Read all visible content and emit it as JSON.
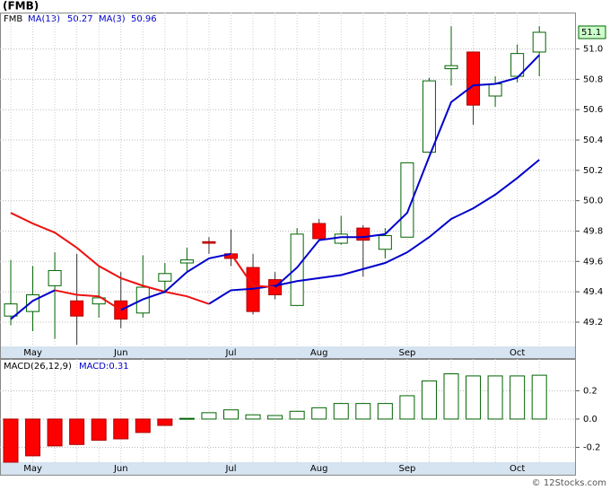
{
  "chart_data": [
    {
      "type": "candlestick",
      "title": "(FMB)",
      "symbol": "FMB",
      "categories": [
        null,
        "May",
        null,
        null,
        null,
        "Jun",
        null,
        null,
        null,
        null,
        "Jul",
        null,
        null,
        null,
        "Aug",
        null,
        null,
        null,
        "Sep",
        null,
        null,
        null,
        null,
        "Oct",
        null
      ],
      "open": [
        49.24,
        49.27,
        49.44,
        49.34,
        49.32,
        49.34,
        49.26,
        49.47,
        49.59,
        49.73,
        49.65,
        49.56,
        49.48,
        49.31,
        49.85,
        49.72,
        49.82,
        49.68,
        49.76,
        50.32,
        50.87,
        50.98,
        50.69,
        50.82,
        50.98
      ],
      "high": [
        49.61,
        49.57,
        49.66,
        49.65,
        49.57,
        49.53,
        49.64,
        49.59,
        49.69,
        49.76,
        49.81,
        49.65,
        49.53,
        49.82,
        49.88,
        49.9,
        49.84,
        49.82,
        50.25,
        50.81,
        51.15,
        50.98,
        50.82,
        51.03,
        51.15
      ],
      "low": [
        49.18,
        49.14,
        49.09,
        49.05,
        49.23,
        49.16,
        49.23,
        49.39,
        49.53,
        49.65,
        49.57,
        49.25,
        49.35,
        49.31,
        49.75,
        49.71,
        49.5,
        49.62,
        49.76,
        50.32,
        50.76,
        50.5,
        50.62,
        50.78,
        50.82
      ],
      "close": [
        49.32,
        49.38,
        49.54,
        49.24,
        49.36,
        49.22,
        49.43,
        49.52,
        49.61,
        49.72,
        49.62,
        49.27,
        49.38,
        49.78,
        49.75,
        49.78,
        49.74,
        49.77,
        50.25,
        50.79,
        50.89,
        50.63,
        50.77,
        50.97,
        51.11
      ],
      "up_color": "#006400",
      "down_color": "#ff0000",
      "series": [
        {
          "name": "MA(13)",
          "color": "#0000cc",
          "falling_color": "#ee1111",
          "values": [
            49.92,
            49.85,
            49.79,
            49.69,
            49.57,
            49.49,
            49.44,
            49.4,
            49.37,
            49.32,
            49.41,
            49.42,
            49.44,
            49.47,
            49.49,
            49.51,
            49.55,
            49.59,
            49.66,
            49.76,
            49.88,
            49.95,
            50.04,
            50.15,
            50.27
          ]
        },
        {
          "name": "MA(3)",
          "color": "#0000cc",
          "falling_color": "#ee1111",
          "values": [
            49.22,
            49.34,
            49.41,
            49.38,
            49.37,
            49.28,
            49.35,
            49.4,
            49.53,
            49.62,
            49.65,
            49.44,
            49.43,
            49.56,
            49.74,
            49.76,
            49.76,
            49.78,
            49.92,
            50.29,
            50.65,
            50.76,
            50.77,
            50.81,
            50.96
          ]
        }
      ],
      "last_label": "51.1",
      "ylim": [
        49.04,
        51.24
      ],
      "yticks": [
        49.2,
        49.4,
        49.6,
        49.8,
        {
          "value": 50,
          "label": "50.0"
        },
        50.2,
        50.4,
        50.6,
        50.8,
        {
          "value": 51,
          "label": "51.0"
        }
      ],
      "grid": true
    },
    {
      "type": "bar",
      "title": "MACD(26,12,9)",
      "value_text": "MACD:0.31",
      "categories": [
        null,
        "May",
        null,
        null,
        null,
        "Jun",
        null,
        null,
        null,
        null,
        "Jul",
        null,
        null,
        null,
        "Aug",
        null,
        null,
        null,
        "Sep",
        null,
        null,
        null,
        null,
        "Oct",
        null
      ],
      "values": [
        -0.31,
        -0.26,
        -0.19,
        -0.18,
        -0.15,
        -0.14,
        -0.095,
        -0.045,
        0.005,
        0.045,
        0.065,
        0.03,
        0.025,
        0.055,
        0.08,
        0.11,
        0.11,
        0.11,
        0.165,
        0.27,
        0.32,
        0.305,
        0.305,
        0.305,
        0.31
      ],
      "up_color": "#006400",
      "down_color": "#ff0000",
      "ylim": [
        -0.305,
        0.425
      ],
      "yticks": [
        0.2,
        {
          "value": 0,
          "label": "0.0"
        },
        -0.2
      ],
      "grid": true
    },
    {
      "footer": "© 12Stocks.com"
    }
  ]
}
